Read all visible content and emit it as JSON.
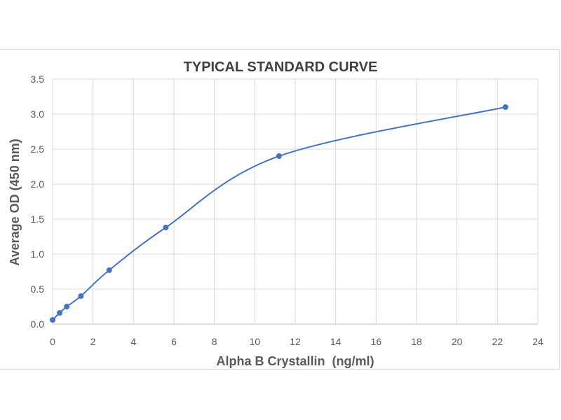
{
  "chart_data": {
    "type": "scatter",
    "title": "TYPICAL STANDARD CURVE",
    "xlabel": "Alpha B Crystallin  (ng/ml)",
    "ylabel": "Average OD (450 nm)",
    "xlim": [
      0,
      24
    ],
    "ylim": [
      0,
      3.5
    ],
    "xticks": [
      0,
      2,
      4,
      6,
      8,
      10,
      12,
      14,
      16,
      18,
      20,
      22,
      24
    ],
    "yticks": [
      "0.0",
      "0.5",
      "1.0",
      "1.5",
      "2.0",
      "2.5",
      "3.0",
      "3.5"
    ],
    "grid": true,
    "smooth_line": true,
    "series": [
      {
        "color": "#4472c4",
        "x": [
          0,
          0.35,
          0.7,
          1.4,
          2.8,
          5.6,
          11.2,
          22.4
        ],
        "y": [
          0.06,
          0.16,
          0.25,
          0.4,
          0.77,
          1.38,
          2.4,
          3.1
        ]
      }
    ]
  }
}
